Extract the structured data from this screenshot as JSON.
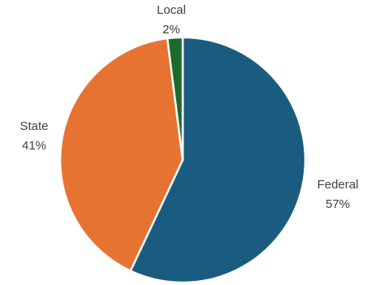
{
  "chart_data": {
    "type": "pie",
    "slices": [
      {
        "label": "Federal",
        "percent_label": "57%",
        "value": 57,
        "color": "#1a5c80"
      },
      {
        "label": "State",
        "percent_label": "41%",
        "value": 41,
        "color": "#e67332"
      },
      {
        "label": "Local",
        "percent_label": "2%",
        "value": 2,
        "color": "#1d6b2c"
      }
    ],
    "start_angle_deg": 0,
    "direction": "clockwise",
    "data_labels": "outside",
    "legend": "none"
  }
}
